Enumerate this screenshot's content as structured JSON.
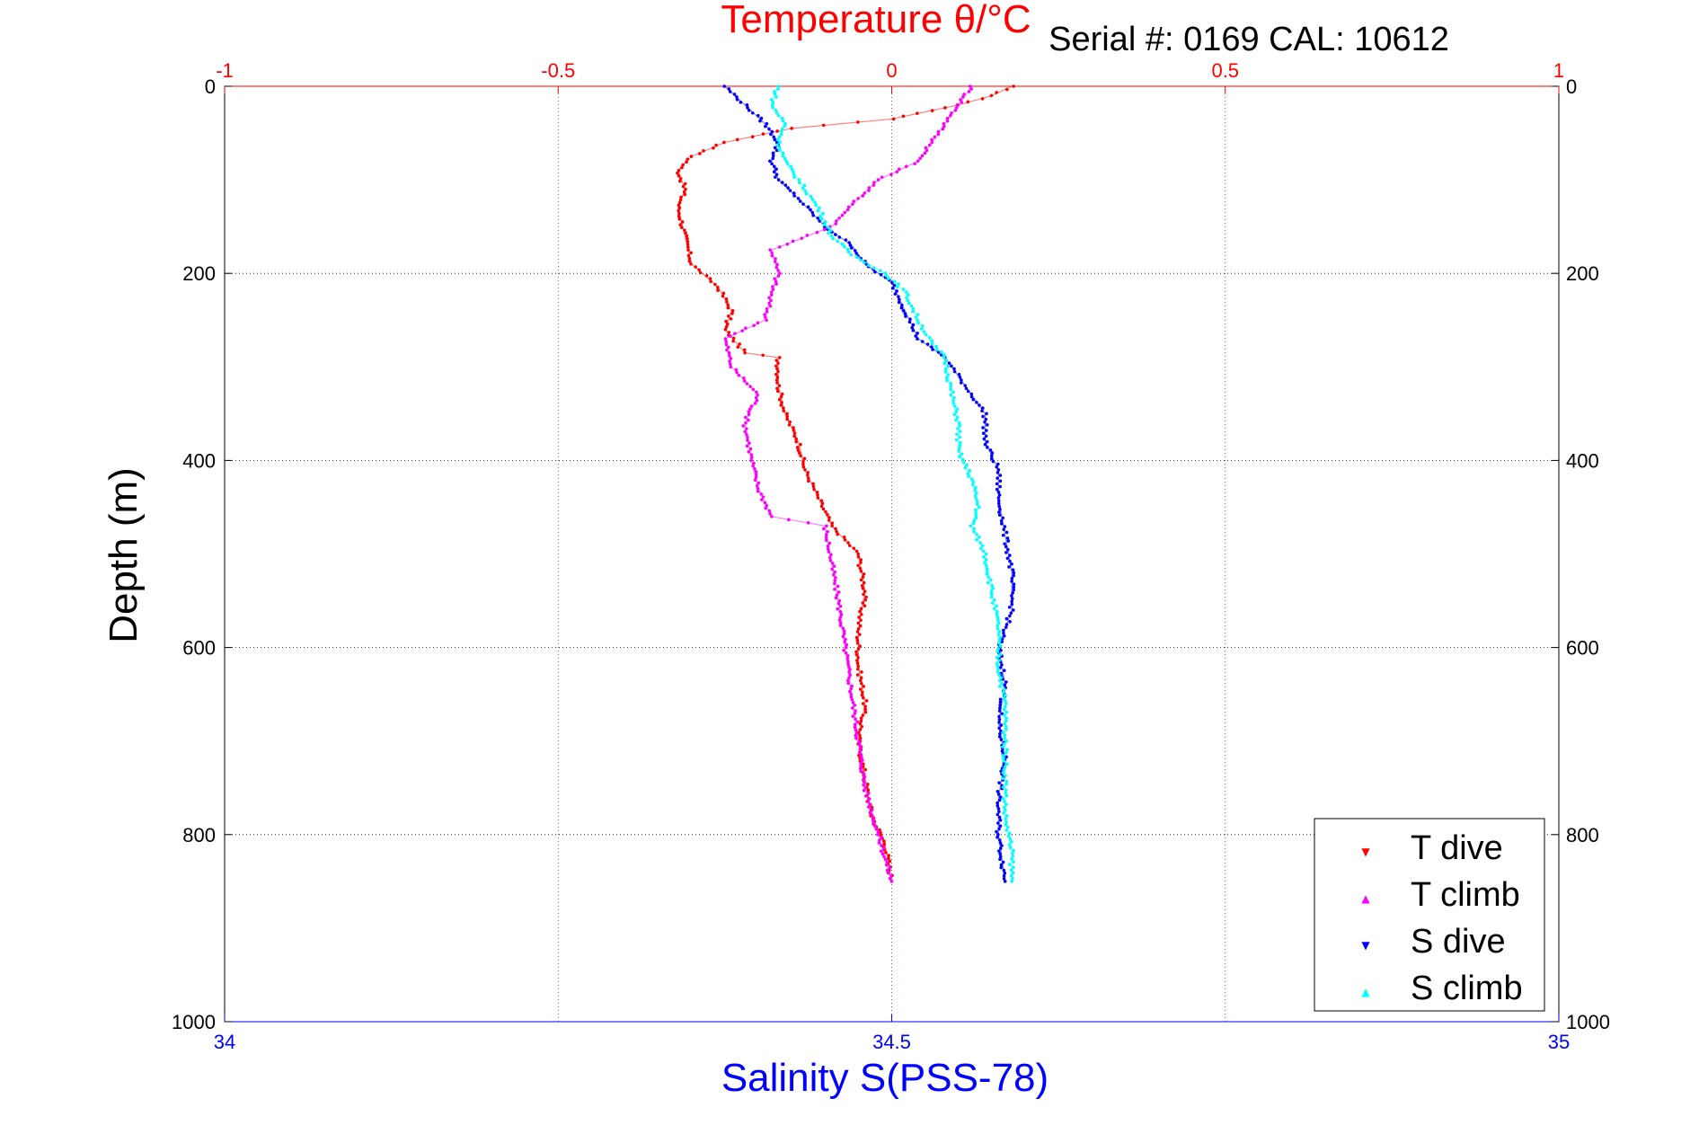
{
  "chart_data": {
    "type": "scatter",
    "title": "Temperature θ/°C",
    "annotation": "Serial #: 0169 CAL: 10612",
    "xlabel": "Salinity S(PSS-78)",
    "ylabel": "Depth (m)",
    "x_bottom": {
      "label": "Salinity S(PSS-78)",
      "lim": [
        34,
        35
      ],
      "ticks": [
        "34",
        "34.5",
        "35"
      ],
      "color": "#0000ff"
    },
    "x_top": {
      "label": "Temperature θ/°C",
      "lim": [
        -1,
        1
      ],
      "ticks": [
        "-1",
        "-0.5",
        "0",
        "0.5",
        "1"
      ],
      "color": "#ff0000"
    },
    "ylim": [
      0,
      1000
    ],
    "y_reversed": true,
    "y_ticks": [
      "0",
      "200",
      "400",
      "600",
      "800",
      "1000"
    ],
    "grid": true,
    "legend_position": "bottom-right",
    "series": [
      {
        "name": "T dive",
        "axis": "temperature",
        "color": "#ff0000",
        "marker": "▼",
        "points": [
          [
            0.18,
            0
          ],
          [
            0.15,
            10
          ],
          [
            0.1,
            20
          ],
          [
            0.0,
            35
          ],
          [
            -0.15,
            45
          ],
          [
            -0.25,
            60
          ],
          [
            -0.3,
            75
          ],
          [
            -0.32,
            90
          ],
          [
            -0.31,
            110
          ],
          [
            -0.32,
            130
          ],
          [
            -0.31,
            160
          ],
          [
            -0.3,
            190
          ],
          [
            -0.26,
            215
          ],
          [
            -0.24,
            240
          ],
          [
            -0.25,
            260
          ],
          [
            -0.22,
            285
          ],
          [
            -0.17,
            290
          ],
          [
            -0.17,
            320
          ],
          [
            -0.16,
            350
          ],
          [
            -0.14,
            380
          ],
          [
            -0.13,
            410
          ],
          [
            -0.11,
            440
          ],
          [
            -0.09,
            470
          ],
          [
            -0.05,
            500
          ],
          [
            -0.04,
            540
          ],
          [
            -0.05,
            580
          ],
          [
            -0.05,
            620
          ],
          [
            -0.04,
            660
          ],
          [
            -0.05,
            700
          ],
          [
            -0.04,
            740
          ],
          [
            -0.03,
            780
          ],
          [
            -0.01,
            810
          ],
          [
            0.0,
            850
          ]
        ]
      },
      {
        "name": "T climb",
        "axis": "temperature",
        "color": "#ff00ff",
        "marker": "▲",
        "points": [
          [
            0.12,
            0
          ],
          [
            0.1,
            20
          ],
          [
            0.08,
            40
          ],
          [
            0.06,
            60
          ],
          [
            0.04,
            80
          ],
          [
            -0.02,
            100
          ],
          [
            -0.05,
            120
          ],
          [
            -0.09,
            150
          ],
          [
            -0.18,
            175
          ],
          [
            -0.17,
            200
          ],
          [
            -0.18,
            220
          ],
          [
            -0.19,
            250
          ],
          [
            -0.25,
            270
          ],
          [
            -0.24,
            300
          ],
          [
            -0.2,
            330
          ],
          [
            -0.22,
            360
          ],
          [
            -0.21,
            400
          ],
          [
            -0.2,
            430
          ],
          [
            -0.18,
            460
          ],
          [
            -0.1,
            470
          ],
          [
            -0.09,
            510
          ],
          [
            -0.08,
            550
          ],
          [
            -0.07,
            600
          ],
          [
            -0.06,
            650
          ],
          [
            -0.05,
            700
          ],
          [
            -0.04,
            750
          ],
          [
            -0.02,
            800
          ],
          [
            0.0,
            850
          ]
        ]
      },
      {
        "name": "S dive",
        "axis": "salinity",
        "color": "#0000ff",
        "marker": "▼",
        "points": [
          [
            34.375,
            0
          ],
          [
            34.39,
            20
          ],
          [
            34.405,
            40
          ],
          [
            34.415,
            60
          ],
          [
            34.41,
            80
          ],
          [
            34.415,
            100
          ],
          [
            34.43,
            120
          ],
          [
            34.45,
            150
          ],
          [
            34.47,
            170
          ],
          [
            34.48,
            190
          ],
          [
            34.5,
            210
          ],
          [
            34.51,
            240
          ],
          [
            34.52,
            270
          ],
          [
            34.54,
            290
          ],
          [
            34.555,
            320
          ],
          [
            34.57,
            350
          ],
          [
            34.57,
            380
          ],
          [
            34.58,
            410
          ],
          [
            34.58,
            440
          ],
          [
            34.585,
            480
          ],
          [
            34.59,
            520
          ],
          [
            34.59,
            560
          ],
          [
            34.58,
            600
          ],
          [
            34.585,
            640
          ],
          [
            34.58,
            680
          ],
          [
            34.585,
            720
          ],
          [
            34.58,
            760
          ],
          [
            34.58,
            800
          ],
          [
            34.585,
            850
          ]
        ]
      },
      {
        "name": "S climb",
        "axis": "salinity",
        "color": "#00ffff",
        "marker": "▲",
        "points": [
          [
            34.415,
            0
          ],
          [
            34.41,
            20
          ],
          [
            34.42,
            40
          ],
          [
            34.415,
            60
          ],
          [
            34.42,
            80
          ],
          [
            34.43,
            100
          ],
          [
            34.445,
            130
          ],
          [
            34.455,
            160
          ],
          [
            34.47,
            180
          ],
          [
            34.495,
            200
          ],
          [
            34.51,
            220
          ],
          [
            34.52,
            250
          ],
          [
            34.53,
            275
          ],
          [
            34.54,
            290
          ],
          [
            34.545,
            330
          ],
          [
            34.55,
            360
          ],
          [
            34.55,
            390
          ],
          [
            34.56,
            420
          ],
          [
            34.565,
            450
          ],
          [
            34.56,
            470
          ],
          [
            34.57,
            500
          ],
          [
            34.575,
            540
          ],
          [
            34.58,
            580
          ],
          [
            34.58,
            620
          ],
          [
            34.585,
            660
          ],
          [
            34.585,
            700
          ],
          [
            34.585,
            740
          ],
          [
            34.585,
            780
          ],
          [
            34.59,
            820
          ],
          [
            34.59,
            850
          ]
        ]
      }
    ]
  }
}
